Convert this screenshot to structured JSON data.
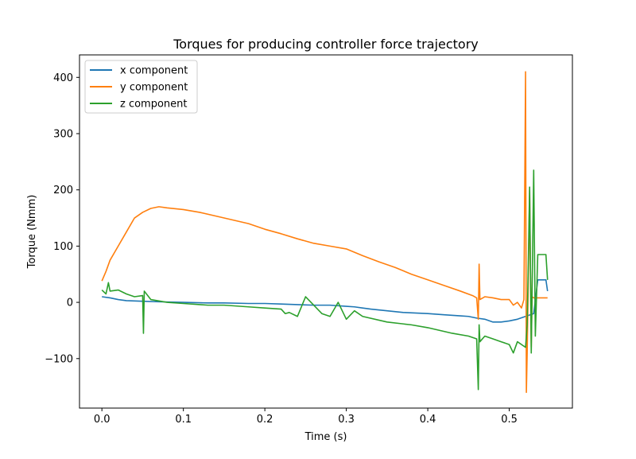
{
  "chart_data": {
    "type": "line",
    "title": "Torques for producing controller force trajectory",
    "xlabel": "Time (s)",
    "ylabel": "Torque (Nmm)",
    "xlim": [
      -0.0275,
      0.5775
    ],
    "ylim": [
      -188,
      440
    ],
    "xticks": [
      0.0,
      0.1,
      0.2,
      0.3,
      0.4,
      0.5
    ],
    "xtick_labels": [
      "0.0",
      "0.1",
      "0.2",
      "0.3",
      "0.4",
      "0.5"
    ],
    "yticks": [
      -100,
      0,
      100,
      200,
      300,
      400
    ],
    "ytick_labels": [
      "−100",
      "0",
      "100",
      "200",
      "300",
      "400"
    ],
    "grid": false,
    "legend_position": "top-left",
    "series": [
      {
        "name": "x component",
        "color": "#1f77b4",
        "x": [
          0.0,
          0.01,
          0.02,
          0.03,
          0.05,
          0.07,
          0.1,
          0.13,
          0.15,
          0.18,
          0.2,
          0.22,
          0.24,
          0.26,
          0.28,
          0.3,
          0.31,
          0.32,
          0.33,
          0.35,
          0.37,
          0.4,
          0.42,
          0.44,
          0.45,
          0.46,
          0.47,
          0.48,
          0.49,
          0.5,
          0.51,
          0.52,
          0.53,
          0.535,
          0.54,
          0.545,
          0.547
        ],
        "y": [
          10,
          8,
          5,
          3,
          2,
          1,
          0,
          -1,
          -1,
          -2,
          -2,
          -3,
          -4,
          -5,
          -5,
          -7,
          -8,
          -10,
          -12,
          -15,
          -18,
          -20,
          -22,
          -24,
          -25,
          -28,
          -30,
          -35,
          -35,
          -33,
          -30,
          -25,
          -20,
          40,
          40,
          40,
          20
        ]
      },
      {
        "name": "y component",
        "color": "#ff7f0e",
        "x": [
          0.0,
          0.005,
          0.01,
          0.02,
          0.03,
          0.04,
          0.05,
          0.06,
          0.07,
          0.08,
          0.1,
          0.12,
          0.15,
          0.18,
          0.2,
          0.22,
          0.24,
          0.26,
          0.28,
          0.3,
          0.32,
          0.34,
          0.36,
          0.38,
          0.4,
          0.42,
          0.44,
          0.455,
          0.46,
          0.462,
          0.463,
          0.464,
          0.47,
          0.48,
          0.49,
          0.5,
          0.505,
          0.51,
          0.515,
          0.518,
          0.52,
          0.521,
          0.522,
          0.525,
          0.527,
          0.528,
          0.53,
          0.535,
          0.54,
          0.545,
          0.547
        ],
        "y": [
          38,
          55,
          75,
          100,
          125,
          150,
          160,
          167,
          170,
          168,
          165,
          160,
          150,
          140,
          130,
          122,
          113,
          105,
          100,
          95,
          83,
          72,
          62,
          50,
          40,
          30,
          20,
          12,
          8,
          -30,
          68,
          5,
          10,
          8,
          5,
          5,
          -5,
          0,
          -10,
          5,
          410,
          -160,
          -90,
          200,
          -80,
          10,
          8,
          8,
          8,
          8,
          8
        ]
      },
      {
        "name": "z component",
        "color": "#2ca02c",
        "x": [
          0.0,
          0.005,
          0.008,
          0.01,
          0.02,
          0.03,
          0.04,
          0.05,
          0.051,
          0.052,
          0.06,
          0.08,
          0.1,
          0.13,
          0.15,
          0.18,
          0.2,
          0.22,
          0.225,
          0.23,
          0.24,
          0.25,
          0.27,
          0.28,
          0.29,
          0.3,
          0.31,
          0.32,
          0.35,
          0.38,
          0.4,
          0.43,
          0.45,
          0.46,
          0.462,
          0.463,
          0.464,
          0.47,
          0.48,
          0.49,
          0.5,
          0.505,
          0.51,
          0.52,
          0.522,
          0.525,
          0.527,
          0.53,
          0.532,
          0.535,
          0.54,
          0.545,
          0.547
        ],
        "y": [
          22,
          15,
          35,
          20,
          22,
          15,
          10,
          12,
          -55,
          20,
          5,
          0,
          -2,
          -5,
          -5,
          -8,
          -10,
          -12,
          -20,
          -18,
          -25,
          10,
          -20,
          -25,
          0,
          -30,
          -15,
          -25,
          -35,
          -40,
          -45,
          -55,
          -60,
          -65,
          -155,
          -40,
          -70,
          -60,
          -65,
          -70,
          -75,
          -90,
          -70,
          -80,
          -40,
          205,
          -90,
          235,
          -60,
          85,
          85,
          85,
          40
        ]
      }
    ]
  }
}
